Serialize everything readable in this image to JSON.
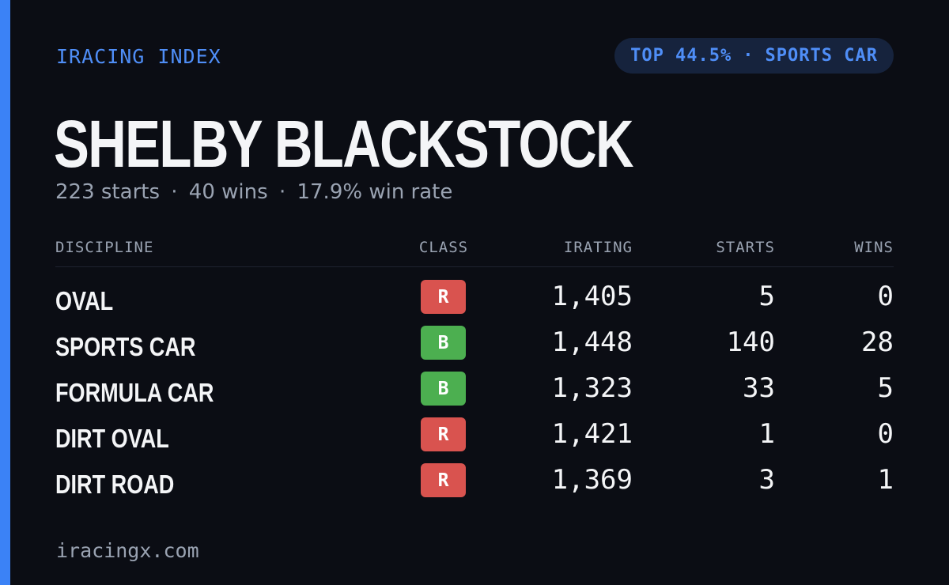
{
  "brand": "IRACING INDEX",
  "rank_badge": {
    "rank": "TOP 44.5%",
    "separator": "·",
    "discipline": "SPORTS CAR"
  },
  "driver": {
    "name": "SHELBY BLACKSTOCK",
    "starts": "223 starts",
    "wins": "40 wins",
    "win_rate": "17.9% win rate",
    "separator": "·"
  },
  "table": {
    "headers": {
      "discipline": "DISCIPLINE",
      "class": "CLASS",
      "irating": "IRATING",
      "starts": "STARTS",
      "wins": "WINS"
    },
    "rows": [
      {
        "discipline": "OVAL",
        "class": "R",
        "class_color": "#d9534f",
        "irating": "1,405",
        "starts": "5",
        "wins": "0"
      },
      {
        "discipline": "SPORTS CAR",
        "class": "B",
        "class_color": "#4caf50",
        "irating": "1,448",
        "starts": "140",
        "wins": "28"
      },
      {
        "discipline": "FORMULA CAR",
        "class": "B",
        "class_color": "#4caf50",
        "irating": "1,323",
        "starts": "33",
        "wins": "5"
      },
      {
        "discipline": "DIRT OVAL",
        "class": "R",
        "class_color": "#d9534f",
        "irating": "1,421",
        "starts": "1",
        "wins": "0"
      },
      {
        "discipline": "DIRT ROAD",
        "class": "R",
        "class_color": "#d9534f",
        "irating": "1,369",
        "starts": "3",
        "wins": "1"
      }
    ]
  },
  "footer": {
    "site": "iracingx.com"
  },
  "colors": {
    "accent": "#3b82f6",
    "background": "#0b0d14",
    "pill_bg": "#16233d"
  }
}
